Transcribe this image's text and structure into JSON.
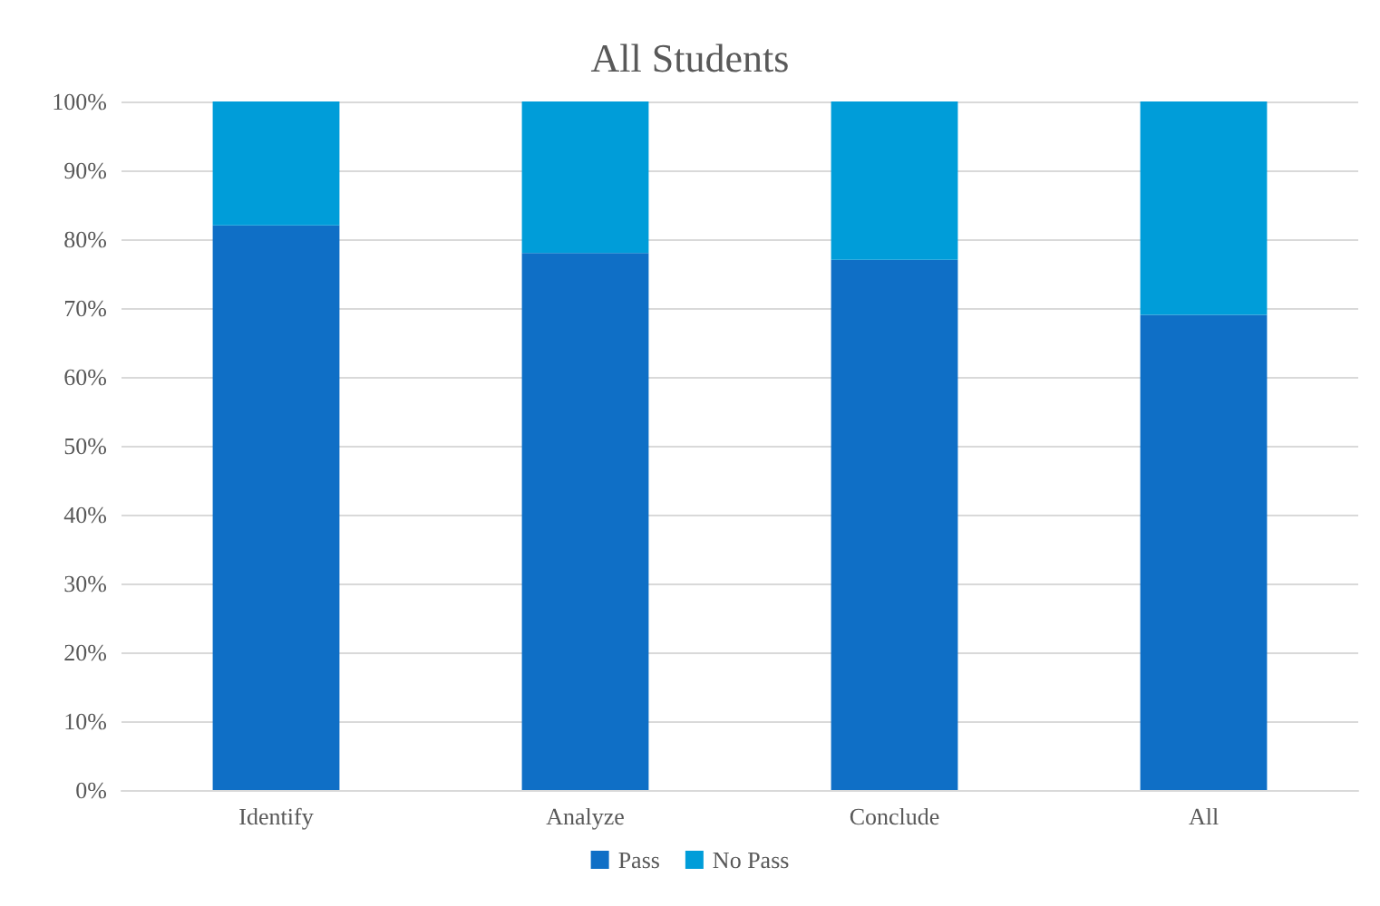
{
  "chart_data": {
    "type": "bar",
    "title": "All Students",
    "categories": [
      "Identify",
      "Analyze",
      "Conclude",
      "All"
    ],
    "stacked": true,
    "series": [
      {
        "name": "Pass",
        "color": "#0f6fc6",
        "values": [
          82,
          78,
          77,
          69
        ]
      },
      {
        "name": "No Pass",
        "color": "#009dd9",
        "values": [
          18,
          22,
          23,
          31
        ]
      }
    ],
    "ylim": [
      0,
      100
    ],
    "yticks": [
      {
        "value": 0,
        "label": "0%"
      },
      {
        "value": 10,
        "label": "10%"
      },
      {
        "value": 20,
        "label": "20%"
      },
      {
        "value": 30,
        "label": "30%"
      },
      {
        "value": 40,
        "label": "40%"
      },
      {
        "value": 50,
        "label": "50%"
      },
      {
        "value": 60,
        "label": "60%"
      },
      {
        "value": 70,
        "label": "70%"
      },
      {
        "value": 80,
        "label": "80%"
      },
      {
        "value": 90,
        "label": "90%"
      },
      {
        "value": 100,
        "label": "100%"
      }
    ],
    "grid": "y",
    "legend": "bottom"
  }
}
